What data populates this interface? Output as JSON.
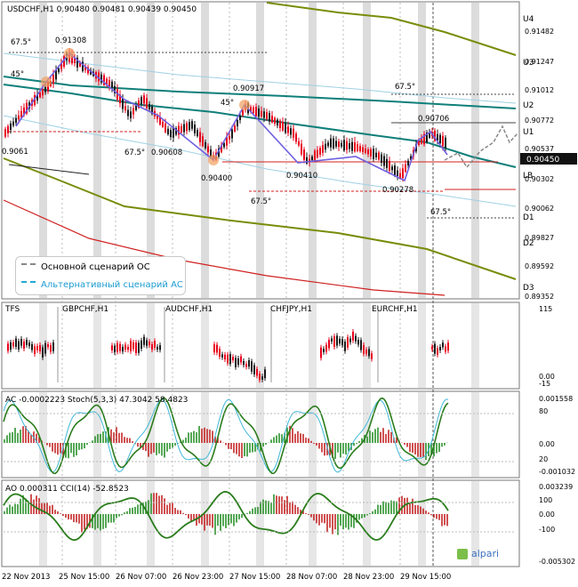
{
  "window": {
    "symbol_header": "USDCHF,H1  0.90480 0.90481 0.90439 0.90450"
  },
  "main_chart": {
    "price_axis_labels": [
      "0.91482",
      "0.91247",
      "0.91012",
      "0.90772",
      "0.90537",
      "0.90302",
      "0.90062",
      "0.89827",
      "0.89592",
      "0.89352"
    ],
    "current_price": "0.90450",
    "levels": [
      "U4",
      "U3",
      "U2",
      "U1",
      "LB",
      "D1",
      "D2",
      "D3"
    ],
    "annotations": [
      "67.5°",
      "0.91308",
      "45°",
      "0.90917",
      "45°",
      "67.5°",
      "0.90706",
      "67.5°",
      "0.90608",
      "0.90400",
      "0.90410",
      "0.90278",
      "67.5°",
      "67.5°",
      "0.9061"
    ],
    "legend": {
      "base": "Основной сценарий ОС",
      "alt": "Альтернативный сценарий АС"
    }
  },
  "tfs_panel": {
    "label": "TFS",
    "pairs": [
      "GBPCHF,H1",
      "AUDCHF,H1",
      "CHFJPY,H1",
      "EURCHF,H1"
    ],
    "axis": [
      "115",
      "0.00",
      "-15"
    ]
  },
  "ac_panel": {
    "label": "AC -0.0002223  Stoch(5,3,3) 47.3042 58.4823",
    "axis": [
      "0.001558",
      "80",
      "0.00",
      "20",
      "-0.001032"
    ]
  },
  "ao_panel": {
    "label": "AO 0.000311  CCI(14) -52.8523",
    "axis": [
      "0.003239",
      "100",
      "0.00",
      "-100",
      "-0.005302"
    ]
  },
  "time_axis": [
    "22 Nov 2013",
    "25 Nov 15:00",
    "26 Nov 07:00",
    "26 Nov 23:00",
    "27 Nov 15:00",
    "28 Nov 07:00",
    "28 Nov 23:00",
    "29 Nov 15:00"
  ],
  "logo": "alpari",
  "colors": {
    "bull": "#1a1a1a",
    "bear": "#e8001c",
    "green_ma": "#7a8c0a",
    "teal_ma": "#0f7f7a",
    "purple_wave": "#7060e0",
    "light_blue": "#9fd1e4",
    "osc_green": "#2a7d1c",
    "red_line": "#d02020"
  },
  "chart_data": {
    "type": "candlestick",
    "title": "USDCHF,H1",
    "ohlc_last": {
      "open": 0.9048,
      "high": 0.90481,
      "low": 0.90439,
      "close": 0.9045
    },
    "ylim": [
      0.8935,
      0.916
    ],
    "wave_points": [
      {
        "label": "0.91308",
        "value": 0.91308
      },
      {
        "label": "0.90400",
        "value": 0.904
      },
      {
        "label": "0.90917",
        "value": 0.90917
      },
      {
        "label": "0.90410",
        "value": 0.9041
      },
      {
        "label": "0.90706",
        "value": 0.90706
      },
      {
        "label": "0.90278",
        "value": 0.90278
      },
      {
        "label": "0.90608",
        "value": 0.90608
      }
    ],
    "levels": {
      "U4": 0.9154,
      "U3": 0.9125,
      "U2": 0.9088,
      "U1": 0.9064,
      "LB": 0.9032,
      "D1": 0.9005,
      "D2": 0.898,
      "D3": 0.894
    },
    "stoch": {
      "k": 47.3042,
      "d": 58.4823
    },
    "ac": -0.0002223,
    "ao": 0.000311,
    "cci": -52.8523
  }
}
